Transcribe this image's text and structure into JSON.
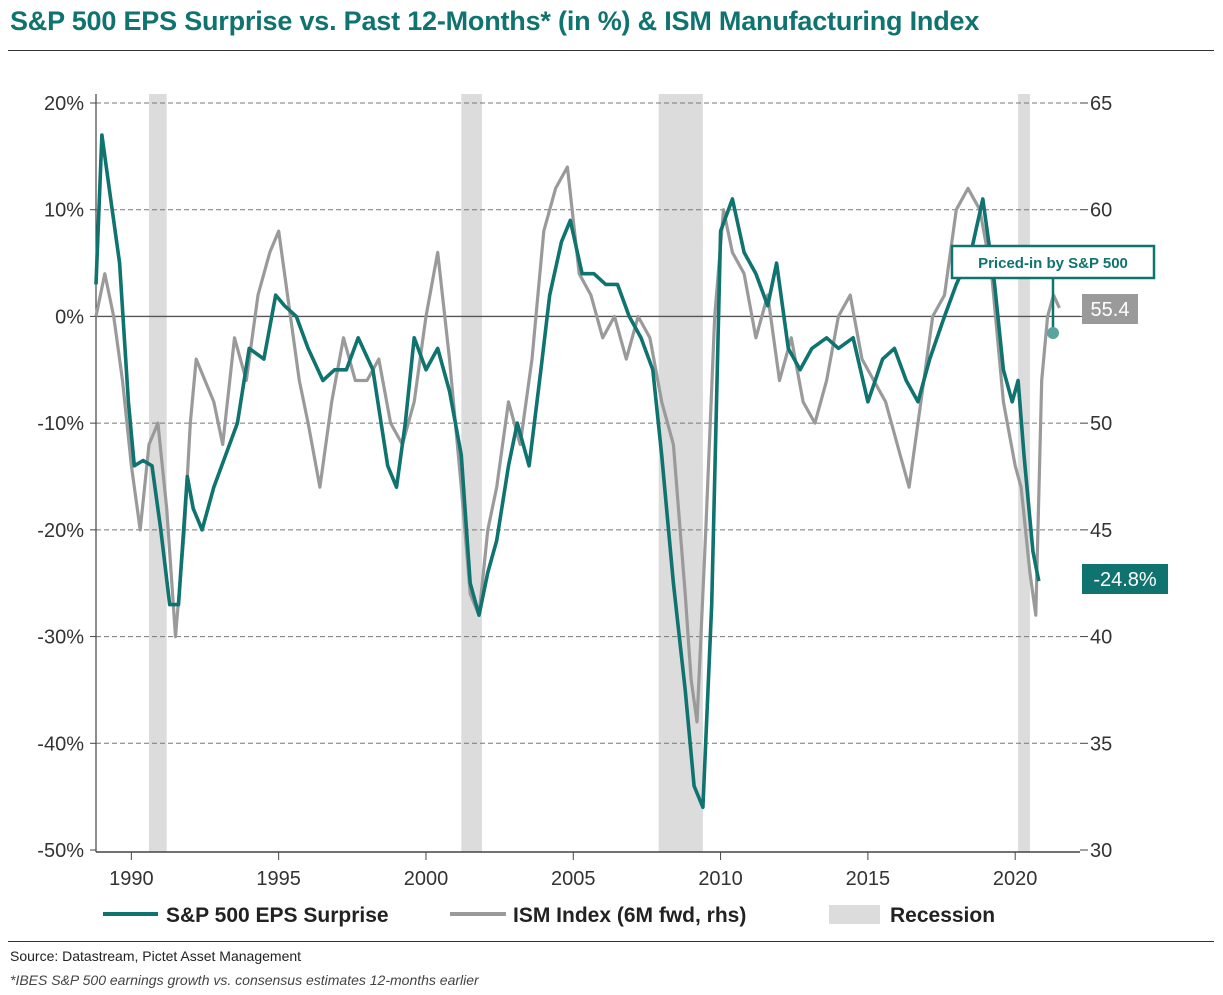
{
  "header": {
    "title": "S&P 500 EPS Surprise vs. Past 12-Months* (in %) & ISM Manufacturing Index"
  },
  "footer": {
    "source": "Source: Datastream, Pictet Asset Management",
    "note": "*IBES S&P 500 earnings growth vs. consensus estimates 12-months earlier"
  },
  "colors": {
    "eps": "#0f7370",
    "ism": "#9a9a9a",
    "recession": "#dcdcdc",
    "title": "#0f7370"
  },
  "chart_data": {
    "type": "line",
    "title": "S&P 500 EPS Surprise vs. Past 12-Months* (in %) & ISM Manufacturing Index",
    "x_range": [
      1988.8,
      2022.2
    ],
    "x_ticks": [
      1990,
      1995,
      2000,
      2005,
      2010,
      2015,
      2020
    ],
    "x_tick_labels": [
      "1990",
      "1995",
      "2000",
      "2005",
      "2010",
      "2015",
      "2020"
    ],
    "y_left": {
      "range": [
        -50,
        20
      ],
      "ticks": [
        20,
        10,
        0,
        -10,
        -20,
        -30,
        -40,
        -50
      ],
      "tick_labels": [
        "20%",
        "10%",
        "0%",
        "-10%",
        "-20%",
        "-30%",
        "-40%",
        "-50%"
      ]
    },
    "y_right": {
      "range": [
        30,
        65
      ],
      "ticks": [
        65,
        60,
        55,
        50,
        45,
        40,
        35,
        30
      ],
      "tick_labels": [
        "65",
        "60",
        "55",
        "50",
        "45",
        "40",
        "35",
        "30"
      ]
    },
    "grid": true,
    "recessions": [
      [
        1990.6,
        1991.2
      ],
      [
        2001.2,
        2001.9
      ],
      [
        2007.9,
        2009.4
      ],
      [
        2020.1,
        2020.5
      ]
    ],
    "series": [
      {
        "name": "S&P 500 EPS Surprise",
        "axis": "left",
        "x": [
          1988.8,
          1989.0,
          1989.3,
          1989.6,
          1989.9,
          1990.1,
          1990.4,
          1990.7,
          1991.0,
          1991.3,
          1991.6,
          1991.9,
          1992.1,
          1992.4,
          1992.8,
          1993.2,
          1993.6,
          1994.0,
          1994.5,
          1994.9,
          1995.2,
          1995.6,
          1996.0,
          1996.5,
          1996.9,
          1997.3,
          1997.7,
          1998.2,
          1998.7,
          1999.0,
          1999.3,
          1999.6,
          2000.0,
          2000.4,
          2000.8,
          2001.2,
          2001.5,
          2001.8,
          2002.1,
          2002.4,
          2002.8,
          2003.1,
          2003.5,
          2003.9,
          2004.2,
          2004.6,
          2004.9,
          2005.3,
          2005.7,
          2006.1,
          2006.5,
          2006.9,
          2007.3,
          2007.7,
          2008.0,
          2008.4,
          2008.8,
          2009.1,
          2009.4,
          2009.7,
          2010.0,
          2010.4,
          2010.8,
          2011.2,
          2011.6,
          2011.9,
          2012.3,
          2012.7,
          2013.1,
          2013.6,
          2014.0,
          2014.5,
          2015.0,
          2015.5,
          2015.9,
          2016.3,
          2016.7,
          2017.1,
          2017.6,
          2018.0,
          2018.5,
          2018.9,
          2019.3,
          2019.6,
          2019.9,
          2020.1,
          2020.3,
          2020.6,
          2020.8
        ],
        "values": [
          3,
          17,
          11,
          5,
          -8,
          -14,
          -13.5,
          -14,
          -20,
          -27,
          -27,
          -15,
          -18,
          -20,
          -16,
          -13,
          -10,
          -3,
          -4,
          2,
          1,
          0,
          -3,
          -6,
          -5,
          -5,
          -2,
          -5,
          -14,
          -16,
          -10,
          -2,
          -5,
          -3,
          -7,
          -13,
          -25,
          -28,
          -24,
          -21,
          -14,
          -10,
          -14,
          -5,
          2,
          7,
          9,
          4,
          4,
          3,
          3,
          0,
          -2,
          -5,
          -13,
          -25,
          -35,
          -44,
          -46,
          -27,
          8,
          11,
          6,
          4,
          1,
          5,
          -3,
          -5,
          -3,
          -2,
          -3,
          -2,
          -8,
          -4,
          -3,
          -6,
          -8,
          -4,
          0,
          3,
          6,
          11,
          3,
          -5,
          -8,
          -6,
          -13,
          -22,
          -24.8
        ]
      },
      {
        "name": "ISM Index (6M fwd, rhs)",
        "axis": "right",
        "x": [
          1988.8,
          1989.1,
          1989.4,
          1989.7,
          1990.0,
          1990.3,
          1990.6,
          1990.9,
          1991.2,
          1991.5,
          1991.8,
          1992.0,
          1992.2,
          1992.5,
          1992.8,
          1993.1,
          1993.5,
          1993.9,
          1994.3,
          1994.7,
          1995.0,
          1995.3,
          1995.7,
          1996.0,
          1996.4,
          1996.8,
          1997.2,
          1997.6,
          1998.0,
          1998.4,
          1998.8,
          1999.2,
          1999.6,
          2000.0,
          2000.4,
          2000.8,
          2001.2,
          2001.5,
          2001.8,
          2002.1,
          2002.4,
          2002.8,
          2003.2,
          2003.6,
          2004.0,
          2004.4,
          2004.8,
          2005.2,
          2005.6,
          2006.0,
          2006.4,
          2006.8,
          2007.2,
          2007.6,
          2008.0,
          2008.4,
          2008.8,
          2009.0,
          2009.2,
          2009.5,
          2009.8,
          2010.1,
          2010.4,
          2010.8,
          2011.2,
          2011.6,
          2012.0,
          2012.4,
          2012.8,
          2013.2,
          2013.6,
          2014.0,
          2014.4,
          2014.8,
          2015.2,
          2015.6,
          2016.0,
          2016.4,
          2016.8,
          2017.2,
          2017.6,
          2018.0,
          2018.4,
          2018.8,
          2019.2,
          2019.6,
          2020.0,
          2020.2,
          2020.5,
          2020.7,
          2020.9,
          2021.1,
          2021.3,
          2021.5
        ],
        "values": [
          55,
          57,
          55,
          52,
          48,
          45,
          49,
          50,
          46,
          40,
          45,
          50,
          53,
          52,
          51,
          49,
          54,
          52,
          56,
          58,
          59,
          56,
          52,
          50,
          47,
          51,
          54,
          52,
          52,
          53,
          50,
          49,
          51,
          55,
          58,
          53,
          47,
          42,
          41,
          45,
          47,
          51,
          49,
          53,
          59,
          61,
          62,
          57,
          56,
          54,
          55,
          53,
          55,
          54,
          51,
          49,
          42,
          38,
          36,
          45,
          55,
          60,
          58,
          57,
          54,
          56,
          52,
          54,
          51,
          50,
          52,
          55,
          56,
          53,
          52,
          51,
          49,
          47,
          51,
          55,
          56,
          60,
          61,
          60,
          57,
          51,
          48,
          47,
          43,
          41,
          52,
          55,
          56,
          55.4
        ]
      }
    ],
    "end_labels": {
      "ism": "55.4",
      "eps": "-24.8%"
    },
    "annotation": "Priced-in by S&P 500",
    "legend": {
      "eps": "S&P 500 EPS Surprise",
      "ism": "ISM Index (6M fwd, rhs)",
      "recession": "Recession"
    }
  }
}
